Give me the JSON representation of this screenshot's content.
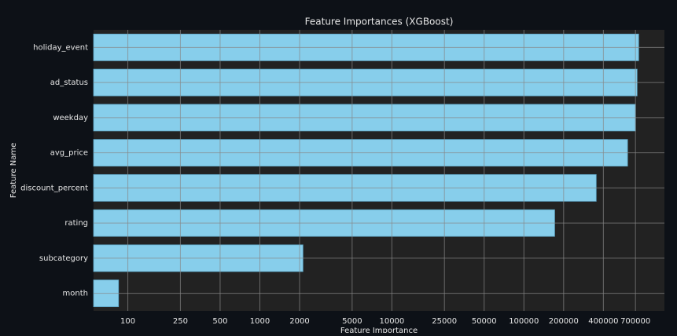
{
  "chart_data": {
    "type": "barh",
    "title": "Feature Importances (XGBoost)",
    "x_label": "Feature Importance",
    "y_label": "Feature Name",
    "categories": [
      "holiday_event",
      "ad_status",
      "weekday",
      "avg_price",
      "discount_percent",
      "rating",
      "subcategory",
      "month"
    ],
    "values": [
      740000,
      720000,
      700000,
      610000,
      353000,
      171000,
      2120,
      85
    ],
    "color": "#87ceeb",
    "xscale": "log",
    "xlim": [
      55,
      1160000
    ],
    "xticks": [
      100,
      250,
      500,
      1000,
      2000,
      5000,
      10000,
      25000,
      50000,
      100000,
      200000,
      400000,
      700000
    ],
    "grid": true
  }
}
